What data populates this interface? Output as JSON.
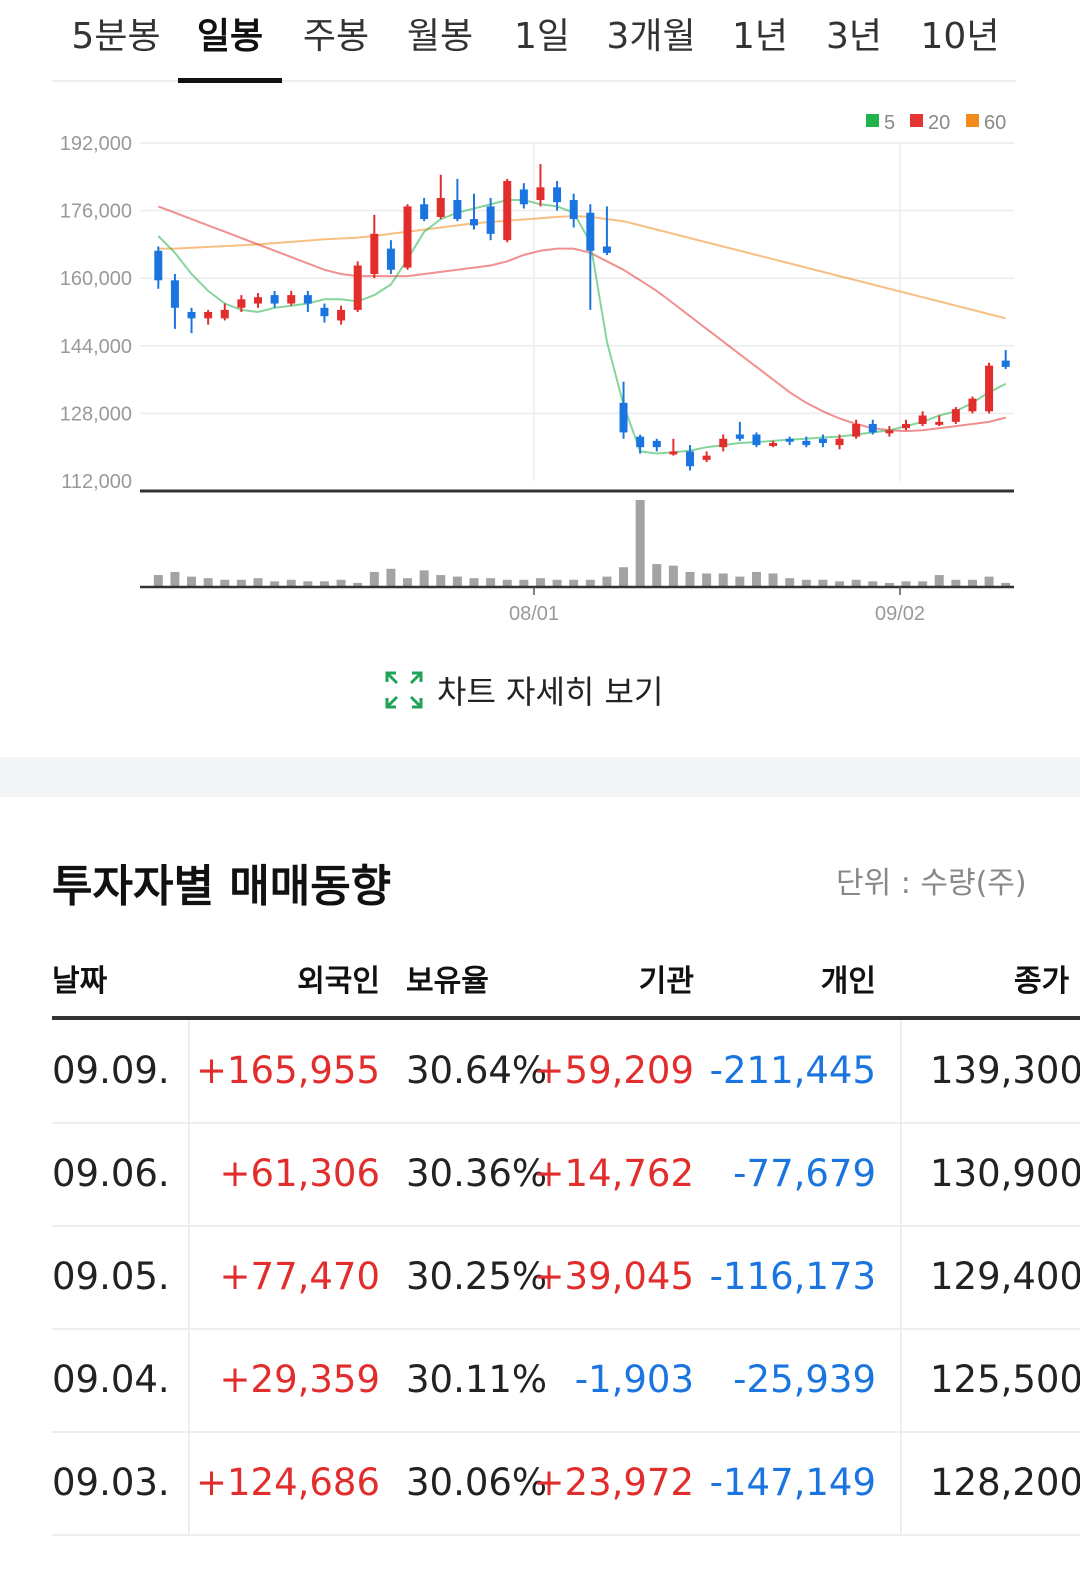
{
  "period_tabs": [
    {
      "label": "5분봉",
      "active": false
    },
    {
      "label": "일봉",
      "active": true
    },
    {
      "label": "주봉",
      "active": false
    },
    {
      "label": "월봉",
      "active": false
    },
    {
      "label": "1일",
      "active": false
    },
    {
      "label": "3개월",
      "active": false
    },
    {
      "label": "1년",
      "active": false
    },
    {
      "label": "3년",
      "active": false
    },
    {
      "label": "10년",
      "active": false
    }
  ],
  "chart_data": {
    "type": "candlestick",
    "y_ticks": [
      "192,000",
      "176,000",
      "160,000",
      "144,000",
      "128,000",
      "112,000"
    ],
    "ylim": [
      112000,
      192000
    ],
    "x_ticks": [
      "08/01",
      "09/02"
    ],
    "legend": [
      {
        "label": "5",
        "color": "#22b24c"
      },
      {
        "label": "20",
        "color": "#e53535"
      },
      {
        "label": "60",
        "color": "#f28a1c"
      }
    ],
    "colors": {
      "up": "#e22d2d",
      "down": "#1a75e0",
      "volume": "#a3a3a3"
    },
    "candles": [
      [
        166500,
        159500,
        167500,
        157500
      ],
      [
        159500,
        153000,
        161000,
        148000
      ],
      [
        152000,
        150500,
        153000,
        147000
      ],
      [
        150500,
        152000,
        152500,
        149000
      ],
      [
        150500,
        152500,
        154000,
        150000
      ],
      [
        153000,
        155000,
        156000,
        152000
      ],
      [
        154000,
        155500,
        156500,
        153000
      ],
      [
        156000,
        154000,
        157000,
        153000
      ],
      [
        154000,
        156000,
        157000,
        153500
      ],
      [
        156000,
        154000,
        157000,
        152000
      ],
      [
        153000,
        151000,
        154000,
        149500
      ],
      [
        150000,
        152500,
        153500,
        149000
      ],
      [
        152500,
        163000,
        164000,
        152000
      ],
      [
        161000,
        170500,
        175000,
        160000
      ],
      [
        167000,
        162000,
        169000,
        161000
      ],
      [
        162500,
        177000,
        177500,
        162000
      ],
      [
        177500,
        174000,
        179000,
        173500
      ],
      [
        174500,
        179000,
        184500,
        174000
      ],
      [
        178500,
        174000,
        183500,
        173500
      ],
      [
        174000,
        172500,
        180000,
        171500
      ],
      [
        177000,
        170500,
        179000,
        169000
      ],
      [
        169000,
        183000,
        183500,
        168500
      ],
      [
        181000,
        177500,
        182500,
        176500
      ],
      [
        178500,
        181500,
        187000,
        177000
      ],
      [
        181500,
        178000,
        183000,
        176000
      ],
      [
        178500,
        174000,
        180000,
        172000
      ],
      [
        175500,
        166500,
        177500,
        152500
      ],
      [
        167500,
        166000,
        177000,
        165500
      ],
      [
        130500,
        123500,
        135500,
        122000
      ],
      [
        122500,
        120000,
        123000,
        118500
      ],
      [
        121500,
        120000,
        122000,
        119000
      ],
      [
        119000,
        119000,
        122000,
        118000
      ],
      [
        119000,
        115500,
        120500,
        114500
      ],
      [
        117000,
        118000,
        119000,
        116500
      ],
      [
        120000,
        122000,
        123000,
        119000
      ],
      [
        123000,
        122000,
        126000,
        121500
      ],
      [
        123000,
        120500,
        123500,
        120000
      ],
      [
        120500,
        121000,
        121500,
        120000
      ],
      [
        122000,
        121500,
        122500,
        120500
      ],
      [
        121500,
        120500,
        122500,
        120000
      ],
      [
        122000,
        121000,
        123000,
        120000
      ],
      [
        120500,
        122000,
        123000,
        119500
      ],
      [
        122500,
        125500,
        126500,
        122000
      ],
      [
        125500,
        123500,
        126500,
        123000
      ],
      [
        123500,
        124000,
        125000,
        122500
      ],
      [
        124500,
        125500,
        126500,
        124000
      ],
      [
        125500,
        127500,
        128500,
        125000
      ],
      [
        125500,
        126000,
        127500,
        125000
      ],
      [
        126000,
        129000,
        129500,
        125500
      ],
      [
        128500,
        131500,
        132000,
        128000
      ],
      [
        128500,
        139300,
        140000,
        128000
      ],
      [
        140500,
        139000,
        143000,
        138500
      ]
    ],
    "ma5": [
      170000,
      166000,
      161000,
      157000,
      154000,
      152500,
      152000,
      153000,
      153500,
      154000,
      155000,
      155000,
      154500,
      156000,
      158500,
      164500,
      171000,
      174000,
      175500,
      176500,
      177500,
      178500,
      178500,
      177500,
      177000,
      175500,
      168500,
      145000,
      130000,
      119000,
      118500,
      118800,
      119200,
      120000,
      120500,
      121000,
      121200,
      121500,
      121800,
      122000,
      122300,
      122500,
      123000,
      123500,
      124000,
      125000,
      126000,
      127500,
      128500,
      130500,
      133000,
      135000
    ],
    "ma20": [
      177000,
      175500,
      174000,
      172500,
      171000,
      169500,
      168000,
      166500,
      165000,
      163500,
      162000,
      161000,
      160500,
      160500,
      160500,
      160500,
      161000,
      161500,
      162000,
      162500,
      163000,
      164000,
      165500,
      166500,
      167000,
      167000,
      166000,
      164000,
      162000,
      159500,
      157000,
      154000,
      151000,
      148000,
      145000,
      142000,
      139000,
      136000,
      133000,
      130500,
      128500,
      126800,
      125500,
      124500,
      124000,
      123800,
      124000,
      124500,
      125000,
      125500,
      126000,
      127000
    ],
    "ma60": [
      167000,
      167000,
      167200,
      167400,
      167600,
      167800,
      168000,
      168300,
      168600,
      168900,
      169200,
      169400,
      169600,
      170000,
      170500,
      171000,
      171500,
      172000,
      172500,
      173000,
      173300,
      173600,
      173900,
      174200,
      174500,
      174700,
      174500,
      174000,
      173500,
      172500,
      171500,
      170500,
      169500,
      168500,
      167500,
      166500,
      165500,
      164500,
      163500,
      162500,
      161500,
      160500,
      159500,
      158500,
      157500,
      156500,
      155500,
      154500,
      153500,
      152500,
      151500,
      150500
    ],
    "volume": [
      7,
      9,
      6,
      5,
      4,
      4,
      5,
      3,
      4,
      3,
      3,
      4,
      2,
      9,
      11,
      5,
      10,
      7,
      6,
      5,
      5,
      4,
      4,
      5,
      4,
      4,
      4,
      6,
      12,
      55,
      14,
      13,
      9,
      8,
      8,
      6,
      9,
      8,
      5,
      4,
      4,
      3,
      4,
      3,
      2,
      3,
      3,
      7,
      4,
      4,
      6,
      2
    ]
  },
  "detail_link": {
    "label": "차트 자세히 보기",
    "icon": "expand-icon"
  },
  "investor_section": {
    "title": "투자자별 매매동향",
    "unit": "단위 : 수량(주)",
    "columns": {
      "date": "날짜",
      "foreign": "외국인",
      "ratio": "보유율",
      "institution": "기관",
      "individual": "개인",
      "close": "종가"
    },
    "rows": [
      {
        "date": "09.09.",
        "foreign": "+165,955",
        "ratio": "30.64%",
        "institution": "+59,209",
        "individual": "-211,445",
        "close": "139,300"
      },
      {
        "date": "09.06.",
        "foreign": "+61,306",
        "ratio": "30.36%",
        "institution": "+14,762",
        "individual": "-77,679",
        "close": "130,900"
      },
      {
        "date": "09.05.",
        "foreign": "+77,470",
        "ratio": "30.25%",
        "institution": "+39,045",
        "individual": "-116,173",
        "close": "129,400"
      },
      {
        "date": "09.04.",
        "foreign": "+29,359",
        "ratio": "30.11%",
        "institution": "-1,903",
        "individual": "-25,939",
        "close": "125,500"
      },
      {
        "date": "09.03.",
        "foreign": "+124,686",
        "ratio": "30.06%",
        "institution": "+23,972",
        "individual": "-147,149",
        "close": "128,200"
      }
    ]
  }
}
